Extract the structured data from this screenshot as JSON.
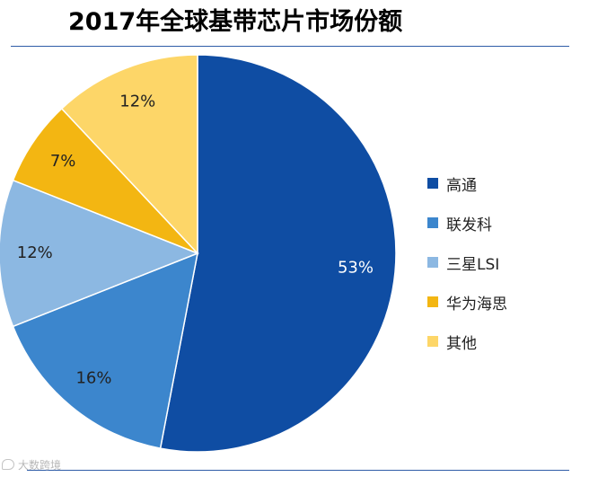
{
  "chart_data": {
    "type": "pie",
    "title": "2017年全球基带芯片市场份额",
    "slices": [
      {
        "label": "高通",
        "value": 53,
        "value_label": "53%",
        "color": "#0f4da3"
      },
      {
        "label": "联发科",
        "value": 16,
        "value_label": "16%",
        "color": "#3c86cd"
      },
      {
        "label": "三星LSI",
        "value": 12,
        "value_label": "12%",
        "color": "#8cb8e2"
      },
      {
        "label": "华为海思",
        "value": 7,
        "value_label": "7%",
        "color": "#f3b612"
      },
      {
        "label": "其他",
        "value": 12,
        "value_label": "12%",
        "color": "#fdd668"
      }
    ],
    "start_angle": "12 o'clock",
    "direction": "clockwise",
    "legend_position": "right"
  },
  "watermark": {
    "text": "大数跨境",
    "icon": "watermark-logo-icon"
  },
  "colors": {
    "rule": "#2f5da8",
    "text": "#222222"
  }
}
